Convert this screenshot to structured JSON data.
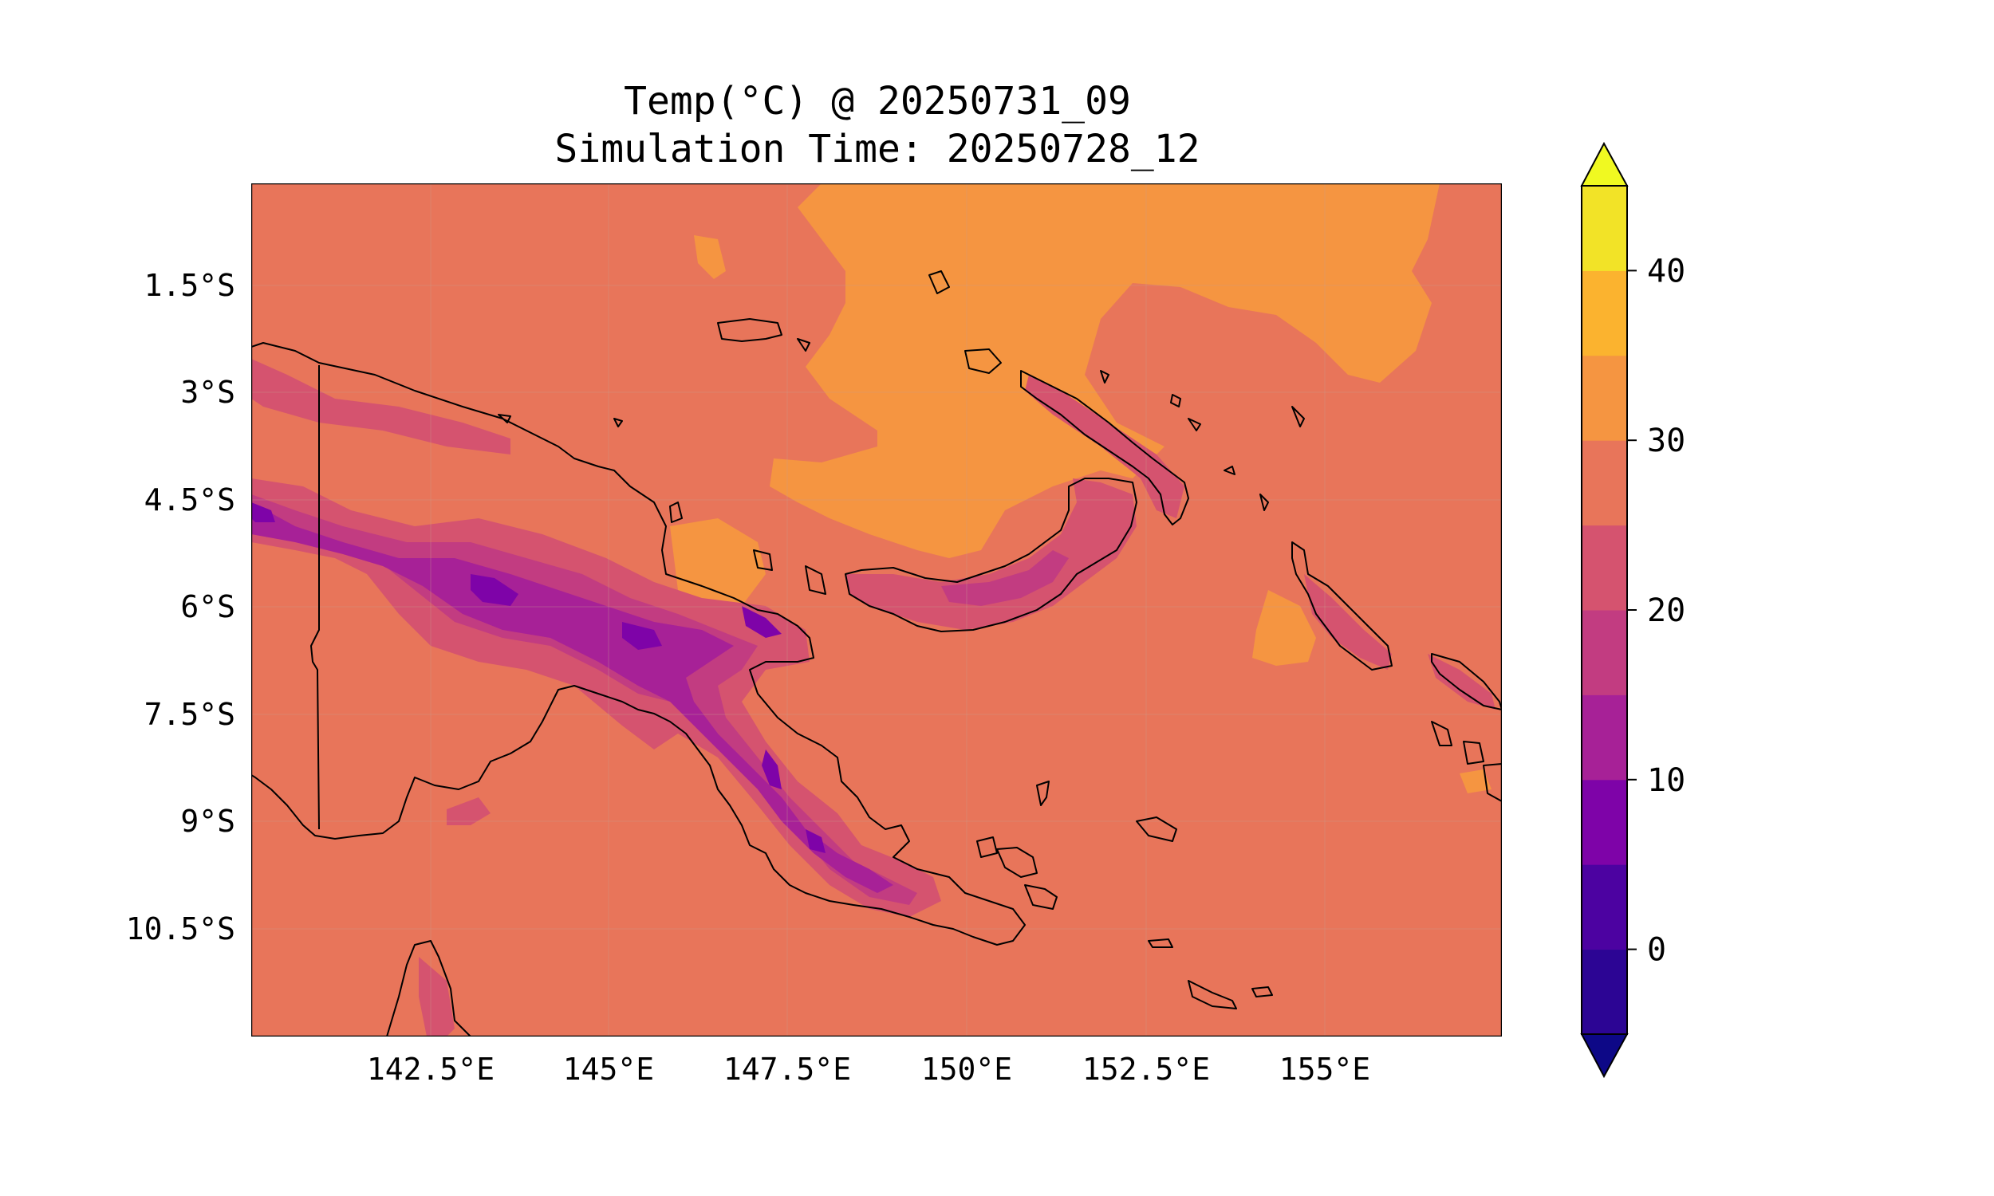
{
  "title": {
    "line1": "Temp(°C) @ 20250731_09",
    "line2": "Simulation Time: 20250728_12"
  },
  "map": {
    "x_ticks": [
      "142.5°E",
      "145°E",
      "147.5°E",
      "150°E",
      "152.5°E",
      "155°E"
    ],
    "y_ticks": [
      "1.5°S",
      "3°S",
      "4.5°S",
      "6°S",
      "7.5°S",
      "9°S",
      "10.5°S"
    ],
    "background_color": "#e8755a"
  },
  "colorbar": {
    "ticks": [
      "0",
      "10",
      "20",
      "30",
      "40"
    ],
    "levels": [
      {
        "range": "-5 to 0",
        "color": "#2c0594"
      },
      {
        "range": "0 to 5",
        "color": "#4c02a1"
      },
      {
        "range": "5 to 10",
        "color": "#7e03a8"
      },
      {
        "range": "10 to 15",
        "color": "#a72197"
      },
      {
        "range": "15 to 20",
        "color": "#c23c81"
      },
      {
        "range": "20 to 25",
        "color": "#d5536f"
      },
      {
        "range": "25 to 30",
        "color": "#e8755a"
      },
      {
        "range": "30 to 35",
        "color": "#f59541"
      },
      {
        "range": "35 to 40",
        "color": "#fbb32f"
      },
      {
        "range": "40 to 45",
        "color": "#f2e327"
      }
    ],
    "under_color": "#0d0887",
    "over_color": "#f0f921"
  }
}
